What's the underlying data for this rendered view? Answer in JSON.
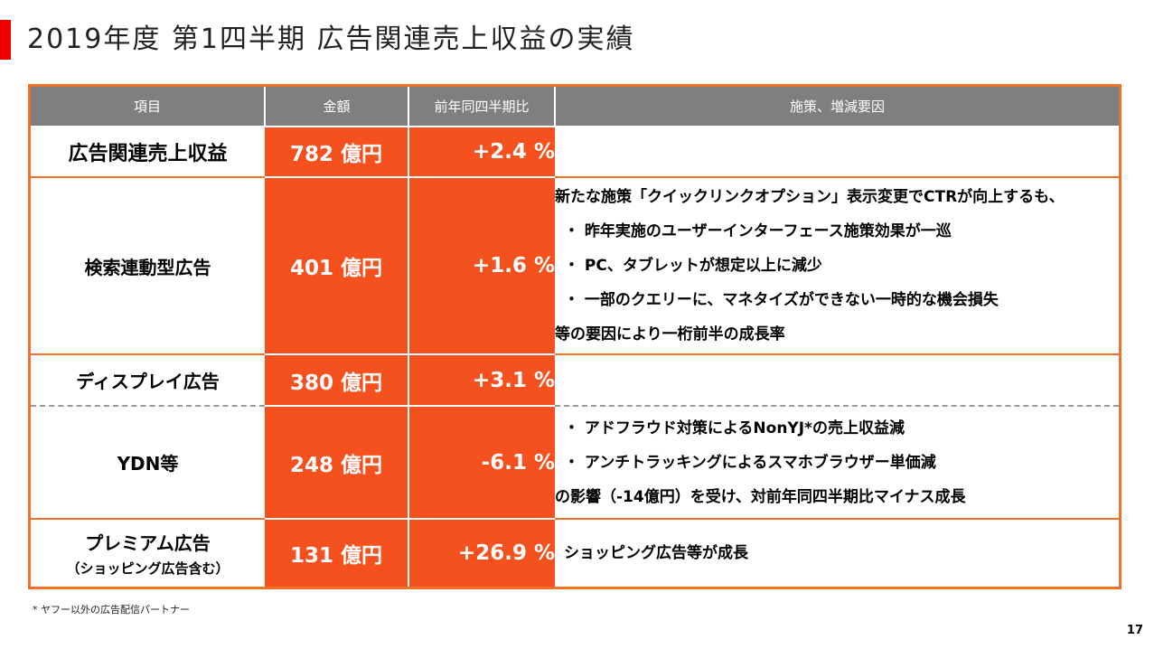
{
  "title": "2019年度 第1四半期 広告関連売上収益の実績",
  "table": {
    "headers": [
      "項目",
      "金額",
      "前年同四半期比",
      "施策、増減要因"
    ],
    "rows": [
      {
        "label": "広告関連売上収益",
        "sublabel": "",
        "amount": "782 億円",
        "ratio": "+2.4 %",
        "notes": []
      },
      {
        "label": "検索連動型広告",
        "sublabel": "",
        "amount": "401 億円",
        "ratio": "+1.6 %",
        "notes": [
          "新たな施策「クイックリンクオプション」表示変更でCTRが向上するも、",
          "・ 昨年実施のユーザーインターフェース施策効果が一巡",
          "・ PC、タブレットが想定以上に減少",
          "・ 一部のクエリーに、マネタイズができない一時的な機会損失",
          "等の要因により一桁前半の成長率"
        ]
      },
      {
        "label": "ディスプレイ広告",
        "sublabel": "",
        "amount": "380 億円",
        "ratio": "+3.1 %",
        "notes": []
      },
      {
        "label": "YDN等",
        "sublabel": "",
        "amount": "248 億円",
        "ratio": "-6.1 %",
        "notes": [
          "・ アドフラウド対策によるNonYJ*の売上収益減",
          "・ アンチトラッキングによるスマホブラウザー単価減",
          "の影響（-14億円）を受け、対前年同四半期比マイナス成長"
        ]
      },
      {
        "label": "プレミアム広告",
        "sublabel": "（ショッピング広告含む）",
        "amount": "131 億円",
        "ratio": "+26.9 %",
        "notes": [
          "ショッピング広告等が成長"
        ]
      }
    ]
  },
  "chart_data": {
    "type": "table",
    "columns": [
      "項目",
      "金額",
      "前年同四半期比",
      "施策、増減要因"
    ],
    "rows": [
      [
        "広告関連売上収益",
        "782 億円",
        "+2.4 %",
        ""
      ],
      [
        "検索連動型広告",
        "401 億円",
        "+1.6 %",
        "新たな施策「クイックリンクオプション」表示変更でCTRが向上するも、 ・ 昨年実施のユーザーインターフェース施策効果が一巡 ・ PC、タブレットが想定以上に減少 ・ 一部のクエリーに、マネタイズができない一時的な機会損失 等の要因により一桁前半の成長率"
      ],
      [
        "ディスプレイ広告",
        "380 億円",
        "+3.1 %",
        ""
      ],
      [
        "YDN等",
        "248 億円",
        "-6.1 %",
        "・ アドフラウド対策によるNonYJ*の売上収益減 ・ アンチトラッキングによるスマホブラウザー単価減 の影響（-14億円）を受け、対前年同四半期比マイナス成長"
      ],
      [
        "プレミアム広告（ショッピング広告含む）",
        "131 億円",
        "+26.9 %",
        "ショッピング広告等が成長"
      ]
    ]
  },
  "footnote": "* ヤフー以外の広告配信パートナー",
  "page_number": "17",
  "colors": {
    "accent": "#f4511e",
    "border": "#f07028",
    "header": "#7f7f7f",
    "title_bar": "#f00000"
  }
}
